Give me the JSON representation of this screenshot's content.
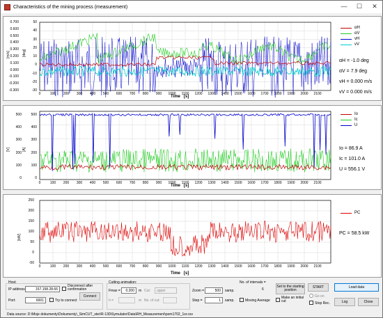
{
  "window": {
    "title": "Characteristics of the mining process (measurement)",
    "min": "—",
    "max": "☐",
    "close": "✕"
  },
  "x_axis": {
    "label": "Time",
    "unit": "[s]",
    "ticks": [
      "0",
      "100",
      "200",
      "300",
      "400",
      "500",
      "600",
      "700",
      "800",
      "900",
      "1000",
      "1100",
      "1200",
      "1300",
      "1400",
      "1500",
      "1600",
      "1700",
      "1800",
      "1900",
      "2000",
      "2100"
    ]
  },
  "panel1": {
    "y_left_unit": "[m/s]",
    "y_right_unit": "[deg]",
    "y_left": [
      "0.700",
      "0.600",
      "0.500",
      "0.400",
      "0.300",
      "0.200",
      "0.100",
      "0.000",
      "-0.100",
      "-0.200",
      "-0.300"
    ],
    "y_right": [
      "50",
      "40",
      "30",
      "20",
      "10",
      "0",
      "-10",
      "-20",
      "-30"
    ],
    "legend": [
      "αH",
      "αV",
      "vH",
      "vV"
    ],
    "readouts": [
      "αH = -1.0 deg",
      "αV = 7.9 deg",
      "vH = 0.000 m/s",
      "vV = 0.000 m/s"
    ],
    "colors": {
      "aH": "#c00000",
      "aV": "#22cc22",
      "vH": "#0000cc",
      "vV": "#00cccc"
    }
  },
  "panel2": {
    "y_left_unit": "[V]",
    "y_right_unit": "[A]",
    "y_left": [
      "500",
      "400",
      "300",
      "200",
      "100",
      "0"
    ],
    "y_right": [
      "500",
      "400",
      "300",
      "200",
      "100",
      "0"
    ],
    "legend": [
      "Io",
      "Ic",
      "U"
    ],
    "readouts": [
      "Io = 86.9 A",
      "Ic = 101.0 A",
      "U = 556.1 V"
    ],
    "colors": {
      "Io": "#c00000",
      "Ic": "#22cc22",
      "U": "#0000cc"
    }
  },
  "panel3": {
    "y_unit": "[kW]",
    "y": [
      "250",
      "200",
      "150",
      "100",
      "50",
      "0",
      "-50"
    ],
    "legend": [
      "PC"
    ],
    "readouts": [
      "PC = 58.5 kW"
    ],
    "colors": {
      "Pc": "#dd0000"
    }
  },
  "controls": {
    "host_label": "Host:",
    "ip_label": "IP address",
    "ip_value": "157.158.28.66",
    "disconnect_label": "Disconnect after confirmation",
    "port_label": "Port:",
    "port_value": "6001",
    "try_connect_label": "Try to connect",
    "connect_button": "Connect",
    "cutting_label": "Cutting animation:",
    "fmax_label": "Fmax =",
    "fmax_value": "0.200",
    "m_label": "m",
    "cut_label": "Cut:",
    "cut_value": "upper",
    "h_label": "h =",
    "h_unit": "m",
    "nocut_label": "No. of cut:",
    "zoom_label": "Zoom =",
    "zoom_value": "500",
    "zoom_unit": "samp.",
    "step_label": "Step =",
    "step_value": "1",
    "step_unit": "samp.",
    "intervals_label": "No. of intervals =",
    "intervals_value": "6",
    "moving_avg_label": "Moving Average",
    "set_start_button": "Set to the starting position",
    "initial_cut_label": "Make an initial cut",
    "start_button": "START",
    "go_on_label": "Go on",
    "stop_rec_label": "Stop Rec.",
    "load_button": "Load data",
    "log_button": "Log",
    "close_button": "Close"
  },
  "status": {
    "text": "Data source: D:\\Moje dokumenty\\Dokumenty\\_SimCUT_ster\\R-130\\Symulator\\Data\\RH_Measurement\\pom1702_1sr.csv"
  }
}
